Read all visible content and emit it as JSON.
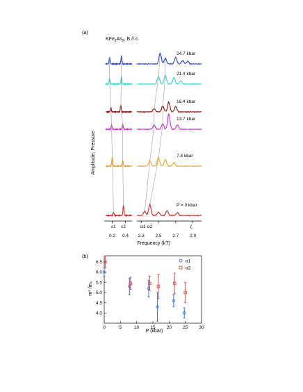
{
  "chart_data": [
    {
      "type": "line",
      "panel_label": "(a)",
      "title": "KFe2As2, B // c",
      "ylabel": "Amplitude, Pressure",
      "xlabel": "Frequency (kT)",
      "x_ticks_left": [
        "0.2",
        "0.4"
      ],
      "x_ticks_right": [
        "2.3",
        "2.5",
        "2.7",
        "2.9"
      ],
      "peak_labels": [
        "ε1",
        "ε2",
        "α1",
        "α2",
        "ζ"
      ],
      "series": [
        {
          "name": "24.7 kbar",
          "color": "#1f3fcf",
          "left_peaks": [
            [
              0.16,
              0.6
            ],
            [
              0.34,
              0.75
            ]
          ],
          "right_peaks": [
            [
              2.52,
              1.0
            ],
            [
              2.58,
              0.5
            ],
            [
              2.7,
              0.6
            ],
            [
              2.78,
              0.3
            ],
            [
              2.84,
              0.25
            ]
          ]
        },
        {
          "name": "21.4 kbar",
          "color": "#2fd2d2",
          "left_peaks": [
            [
              0.16,
              0.5
            ],
            [
              0.34,
              0.7
            ]
          ],
          "right_peaks": [
            [
              2.5,
              0.7
            ],
            [
              2.58,
              0.8
            ],
            [
              2.68,
              0.6
            ],
            [
              2.76,
              0.3
            ]
          ]
        },
        {
          "name": "16.4 kbar",
          "color": "#7a1010",
          "left_peaks": [
            [
              0.18,
              0.4
            ],
            [
              0.33,
              0.6
            ]
          ],
          "right_peaks": [
            [
              2.45,
              0.3
            ],
            [
              2.55,
              0.55
            ],
            [
              2.62,
              0.9
            ],
            [
              2.7,
              0.5
            ]
          ]
        },
        {
          "name": "13.7 kbar",
          "color": "#d020c8",
          "left_peaks": [
            [
              0.19,
              0.4
            ],
            [
              0.36,
              0.45
            ]
          ],
          "right_peaks": [
            [
              2.45,
              0.4
            ],
            [
              2.55,
              0.5
            ],
            [
              2.62,
              1.4
            ],
            [
              2.72,
              0.4
            ]
          ]
        },
        {
          "name": "7.8 kbar",
          "color": "#f0a020",
          "left_peaks": [
            [
              0.2,
              0.8
            ],
            [
              0.36,
              0.5
            ]
          ],
          "right_peaks": [
            [
              2.4,
              0.5
            ],
            [
              2.5,
              0.8
            ],
            [
              2.58,
              0.6
            ],
            [
              2.68,
              0.3
            ]
          ]
        },
        {
          "name": "P = 0 kbar",
          "color": "#d21e1e",
          "left_peaks": [
            [
              0.22,
              0.3
            ],
            [
              0.37,
              0.9
            ]
          ],
          "right_peaks": [
            [
              2.34,
              0.4
            ],
            [
              2.4,
              1.0
            ],
            [
              2.5,
              0.3
            ],
            [
              2.6,
              0.45
            ],
            [
              2.72,
              0.25
            ]
          ]
        }
      ]
    },
    {
      "type": "scatter",
      "panel_label": "(b)",
      "xlabel": "P (kbar)",
      "ylabel": "m* /m₀",
      "xlim": [
        0,
        30
      ],
      "ylim": [
        3.5,
        6.8
      ],
      "x_ticks": [
        0,
        5,
        10,
        15,
        20,
        25,
        30
      ],
      "y_ticks": [
        4.0,
        4.5,
        5.0,
        5.5,
        6.0,
        6.5
      ],
      "legend_position": "top-right",
      "series": [
        {
          "name": "α1",
          "color": "#3a6fd8",
          "marker": "circle",
          "x": [
            0,
            7.8,
            13.7,
            16.4,
            21.4,
            24.7
          ],
          "y": [
            6.0,
            5.3,
            5.2,
            4.3,
            4.6,
            4.0
          ],
          "err": [
            0.2,
            0.4,
            0.4,
            0.7,
            0.3,
            0.25
          ]
        },
        {
          "name": "α2",
          "color": "#e24a4a",
          "marker": "square",
          "x": [
            0,
            7.8,
            13.7,
            16.4,
            21.4,
            24.7
          ],
          "y": [
            6.5,
            5.45,
            5.45,
            5.3,
            5.45,
            5.0
          ],
          "err": [
            0.3,
            0.3,
            0.35,
            0.6,
            0.5,
            0.5
          ]
        }
      ]
    }
  ]
}
